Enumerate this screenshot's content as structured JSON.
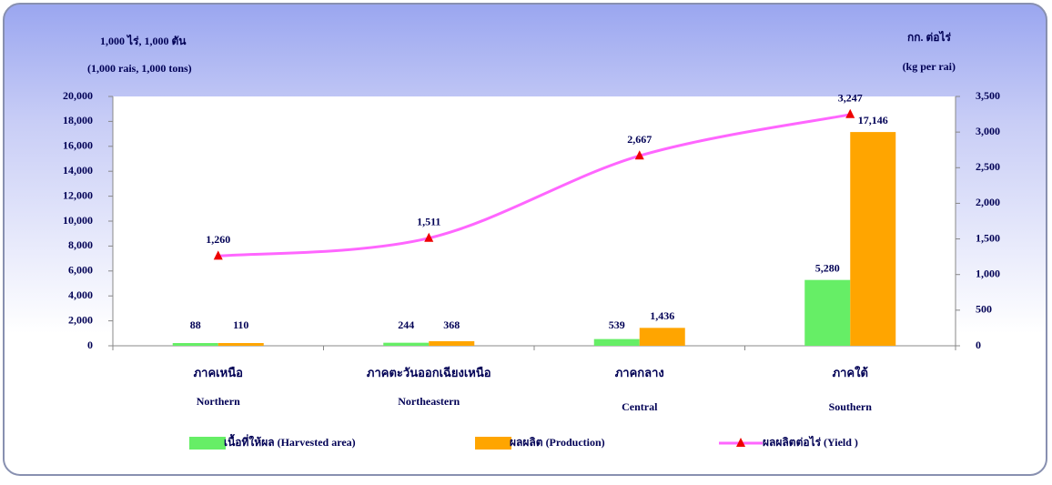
{
  "chart_data": {
    "type": "bar",
    "ylabel": [
      "1,000 ไร่, 1,000  ตัน",
      "(1,000 rais,  1,000 tons)"
    ],
    "y2label": [
      "กก. ต่อไร่",
      "(kg per rai)"
    ],
    "categories": [
      "ภาคเหนือ",
      "ภาคตะวันออกเฉียงเหนือ",
      "ภาคกลาง",
      "ภาคใต้"
    ],
    "categories_en": [
      "Northern",
      "Northeastern",
      "Central",
      "Southern"
    ],
    "series": [
      {
        "name": "เนื้อที่ให้ผล (Harvested area)",
        "type": "bar",
        "color": "#66ee66",
        "values": [
          88,
          244,
          539,
          5280
        ],
        "value_labels": [
          "88",
          "244",
          "539",
          "5,280"
        ]
      },
      {
        "name": "ผลผลิต (Production)",
        "type": "bar",
        "color": "#ffa500",
        "values": [
          110,
          368,
          1436,
          17146
        ],
        "value_labels": [
          "110",
          "368",
          "1,436",
          "17,146"
        ]
      },
      {
        "name": "ผลผลิตต่อไร่ (Yield )",
        "type": "line",
        "axis": "y2",
        "color": "#ff66ff",
        "marker_color": "#ee0000",
        "values": [
          1260,
          1511,
          2667,
          3247
        ],
        "value_labels": [
          "1,260",
          "1,511",
          "2,667",
          "3,247"
        ]
      }
    ],
    "ylim": [
      0,
      20000
    ],
    "yticks": [
      0,
      {
        "value": 2000,
        "label": "2,000"
      },
      {
        "value": 4000,
        "label": "4,000"
      },
      {
        "value": 6000,
        "label": "6,000"
      },
      {
        "value": 8000,
        "label": "8,000"
      },
      {
        "value": 10000,
        "label": "10,000"
      },
      {
        "value": 12000,
        "label": "12,000"
      },
      {
        "value": 14000,
        "label": "14,000"
      },
      {
        "value": 16000,
        "label": "16,000"
      },
      {
        "value": 18000,
        "label": "18,000"
      },
      {
        "value": 20000,
        "label": "20,000"
      }
    ],
    "y2lim": [
      0,
      3500
    ],
    "y2ticks": [
      0,
      500,
      {
        "value": 1000,
        "label": "1,000"
      },
      {
        "value": 1500,
        "label": "1,500"
      },
      {
        "value": 2000,
        "label": "2,000"
      },
      {
        "value": 2500,
        "label": "2,500"
      },
      {
        "value": 3000,
        "label": "3,000"
      },
      {
        "value": 3500,
        "label": "3,500"
      }
    ],
    "legend": "bottom"
  }
}
